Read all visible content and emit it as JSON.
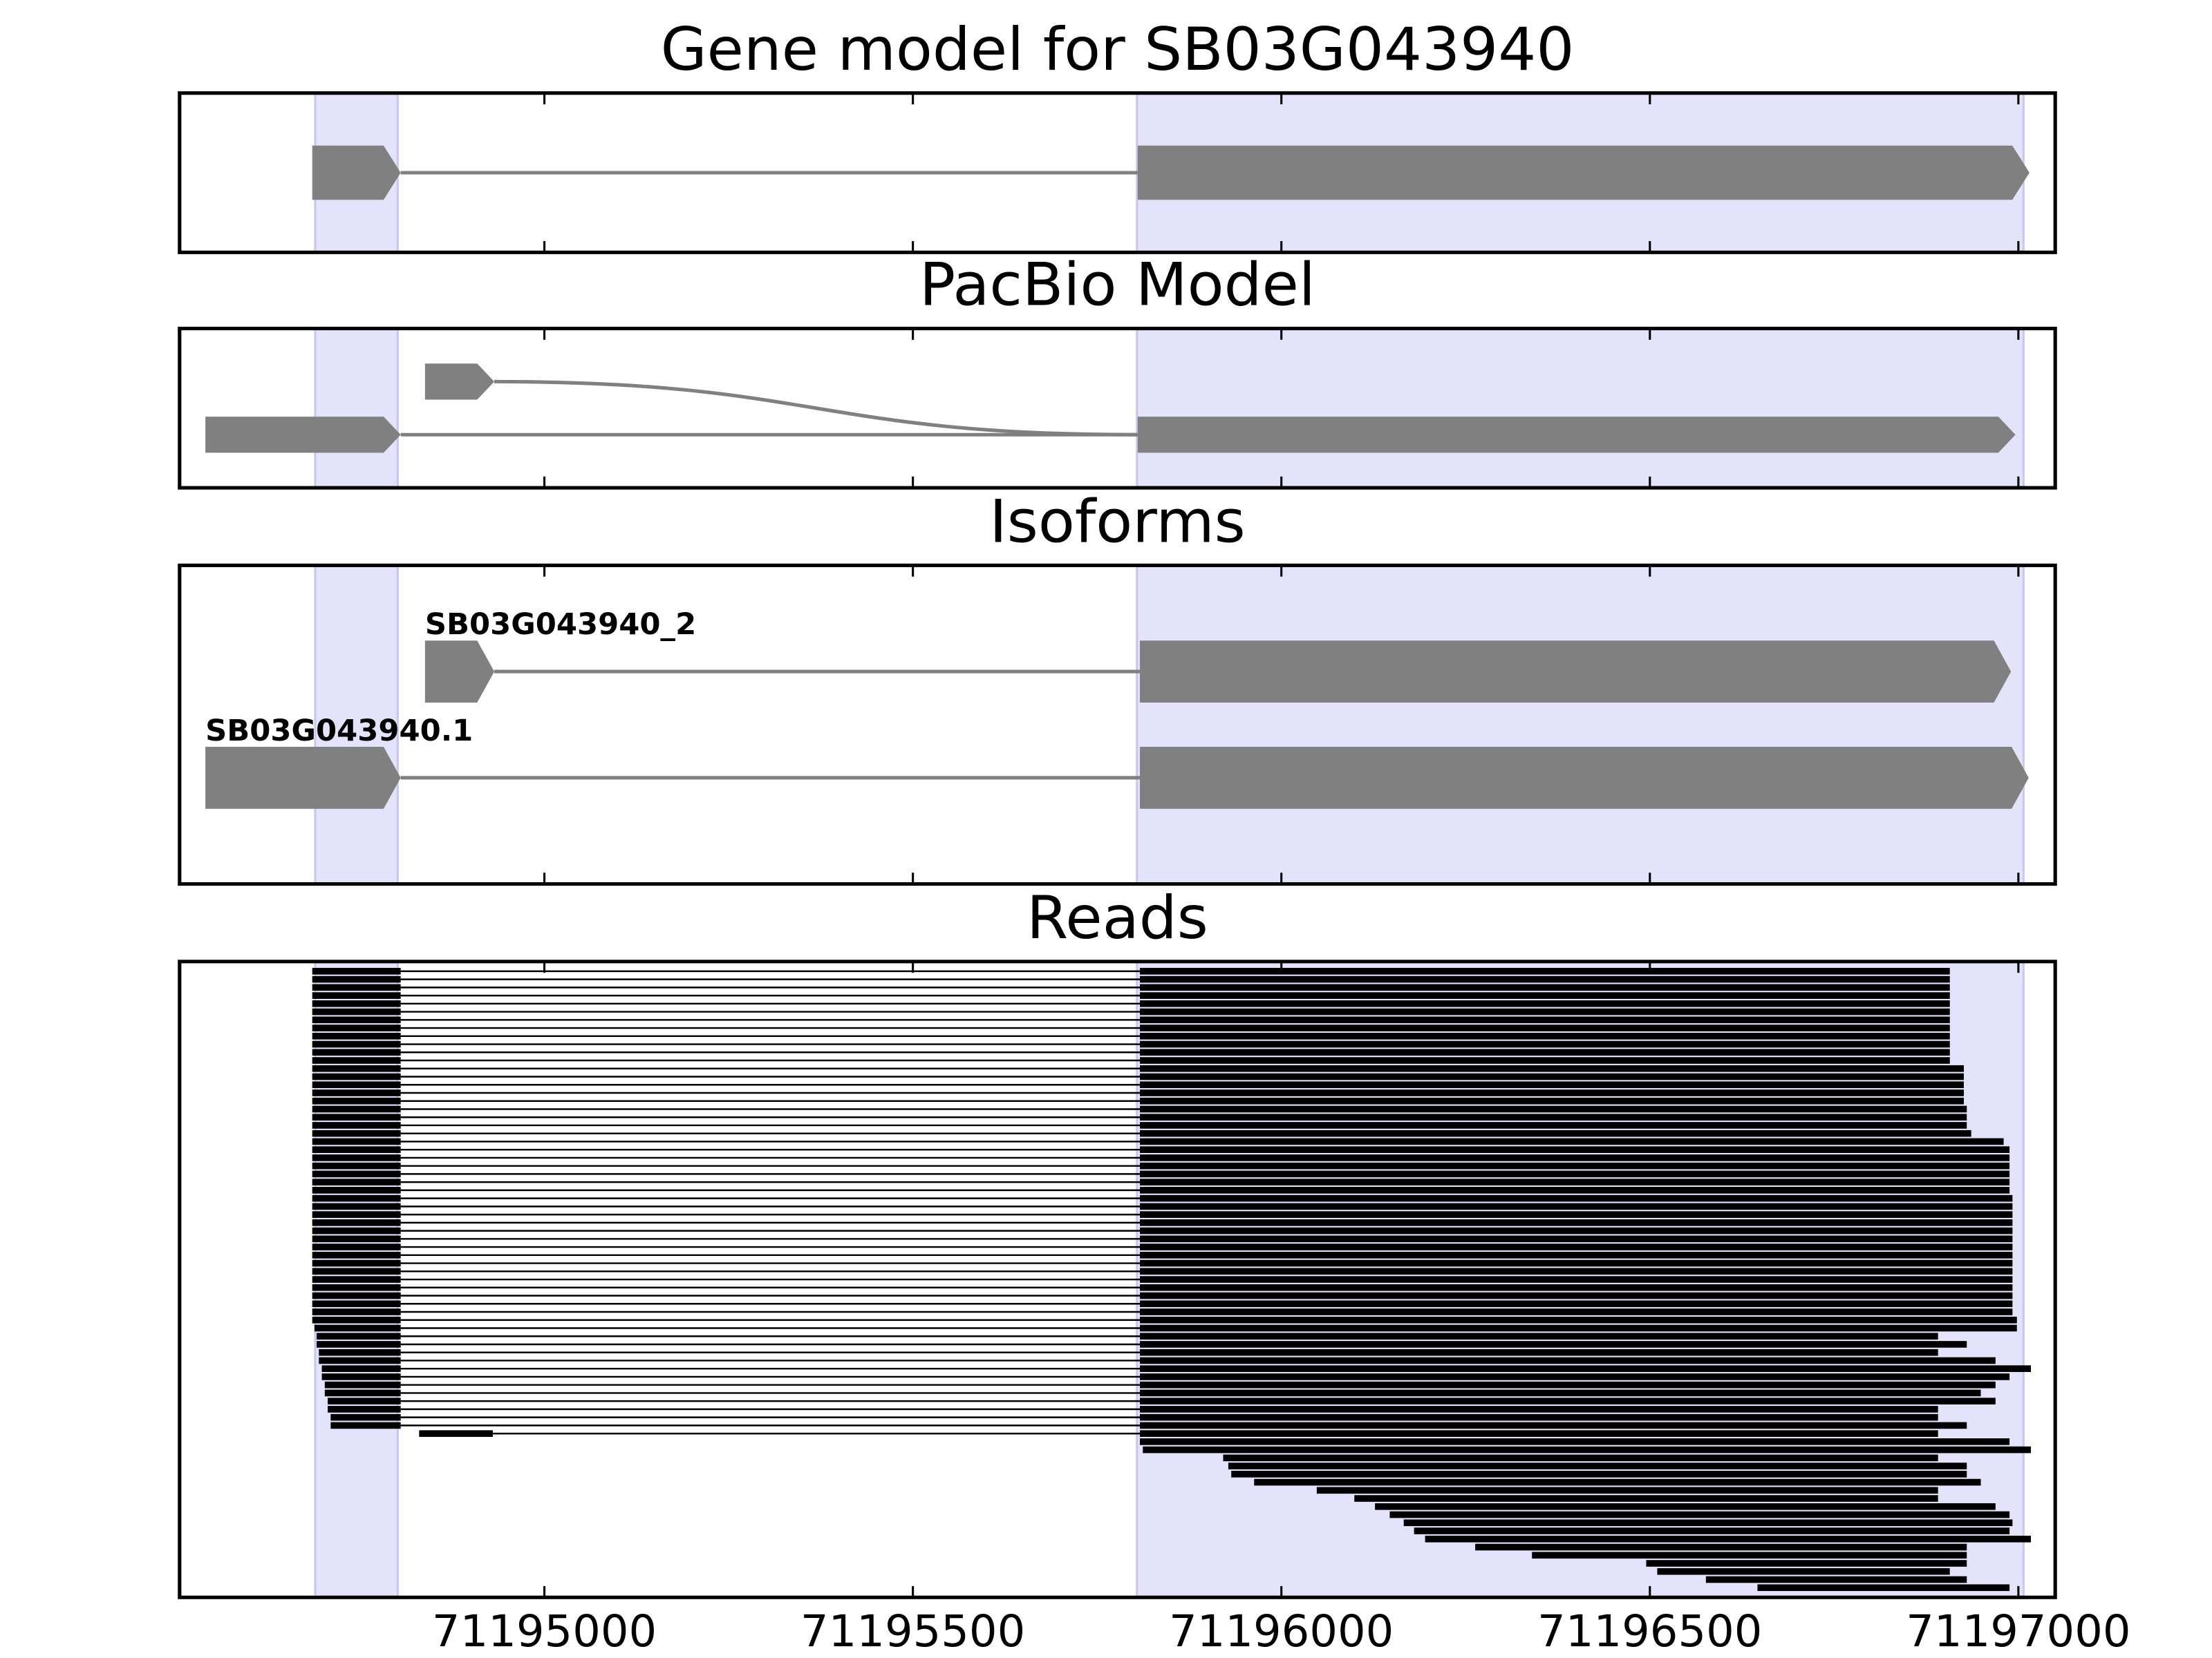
{
  "chart_data": [
    {
      "type": "gene",
      "title": "Gene model for SB03G043940",
      "xlim": [
        71194505,
        71197050
      ],
      "xticks": [
        71195000,
        71195500,
        71196000,
        71196500,
        71197000
      ],
      "highlights": [
        [
          71194689,
          71194801
        ],
        [
          71195804,
          71197007
        ]
      ],
      "highlight_color": "#e3e3fc",
      "color": "#808080",
      "models": [
        {
          "exons": [
            [
              71194685,
              71194805
            ],
            [
              71195805,
              71197015
            ]
          ]
        }
      ]
    },
    {
      "type": "gene",
      "title": "PacBio Model",
      "xlim": [
        71194505,
        71197050
      ],
      "xticks": [
        71195000,
        71195500,
        71196000,
        71196500,
        71197000
      ],
      "highlights": [
        [
          71194689,
          71194801
        ],
        [
          71195804,
          71197007
        ]
      ],
      "highlight_color": "#e3e3fc",
      "color": "#808080",
      "models": [
        {
          "exons": [
            [
              71194838,
              71194932
            ],
            [
              71195805,
              71196996
            ]
          ]
        },
        {
          "exons": [
            [
              71194540,
              71194805
            ],
            [
              71195805,
              71196996
            ]
          ]
        }
      ]
    },
    {
      "type": "gene",
      "title": "Isoforms",
      "xlim": [
        71194505,
        71197050
      ],
      "xticks": [
        71195000,
        71195500,
        71196000,
        71196500,
        71197000
      ],
      "highlights": [
        [
          71194689,
          71194801
        ],
        [
          71195804,
          71197007
        ]
      ],
      "highlight_color": "#e3e3fc",
      "color": "#808080",
      "models": [
        {
          "name": "SB03G043940_2",
          "exons": [
            [
              71194838,
              71194932
            ],
            [
              71195808,
              71196990
            ]
          ]
        },
        {
          "name": "SB03G043940.1",
          "exons": [
            [
              71194540,
              71194805
            ],
            [
              71195808,
              71197014
            ]
          ]
        }
      ]
    },
    {
      "type": "reads",
      "title": "Reads",
      "xlim": [
        71194505,
        71197050
      ],
      "xticks": [
        71195000,
        71195500,
        71196000,
        71196500,
        71197000
      ],
      "highlights": [
        [
          71194689,
          71194801
        ],
        [
          71195804,
          71197007
        ]
      ],
      "highlight_color": "#e3e3fc",
      "color": "#000000",
      "reads": [
        [
          71194685,
          71194805,
          71195808,
          71196907
        ],
        [
          71194685,
          71194805,
          71195808,
          71196907
        ],
        [
          71194685,
          71194805,
          71195808,
          71196907
        ],
        [
          71194685,
          71194805,
          71195808,
          71196907
        ],
        [
          71194685,
          71194805,
          71195808,
          71196907
        ],
        [
          71194685,
          71194805,
          71195808,
          71196907
        ],
        [
          71194685,
          71194805,
          71195808,
          71196907
        ],
        [
          71194685,
          71194805,
          71195808,
          71196907
        ],
        [
          71194685,
          71194805,
          71195808,
          71196907
        ],
        [
          71194685,
          71194805,
          71195808,
          71196907
        ],
        [
          71194685,
          71194805,
          71195808,
          71196907
        ],
        [
          71194685,
          71194805,
          71195808,
          71196907
        ],
        [
          71194685,
          71194805,
          71195808,
          71196926
        ],
        [
          71194685,
          71194805,
          71195808,
          71196926
        ],
        [
          71194685,
          71194805,
          71195808,
          71196926
        ],
        [
          71194685,
          71194805,
          71195808,
          71196926
        ],
        [
          71194685,
          71194805,
          71195808,
          71196926
        ],
        [
          71194685,
          71194805,
          71195808,
          71196930
        ],
        [
          71194685,
          71194805,
          71195808,
          71196930
        ],
        [
          71194685,
          71194805,
          71195808,
          71196930
        ],
        [
          71194685,
          71194805,
          71195808,
          71196936
        ],
        [
          71194685,
          71194805,
          71195808,
          71196980
        ],
        [
          71194685,
          71194805,
          71195808,
          71196988
        ],
        [
          71194685,
          71194805,
          71195808,
          71196988
        ],
        [
          71194685,
          71194805,
          71195808,
          71196988
        ],
        [
          71194685,
          71194805,
          71195808,
          71196988
        ],
        [
          71194685,
          71194805,
          71195808,
          71196988
        ],
        [
          71194685,
          71194805,
          71195808,
          71196988
        ],
        [
          71194685,
          71194805,
          71195808,
          71196992
        ],
        [
          71194685,
          71194805,
          71195808,
          71196992
        ],
        [
          71194685,
          71194805,
          71195808,
          71196992
        ],
        [
          71194685,
          71194805,
          71195808,
          71196992
        ],
        [
          71194685,
          71194805,
          71195808,
          71196992
        ],
        [
          71194685,
          71194805,
          71195808,
          71196992
        ],
        [
          71194685,
          71194805,
          71195808,
          71196992
        ],
        [
          71194685,
          71194805,
          71195808,
          71196992
        ],
        [
          71194685,
          71194805,
          71195808,
          71196992
        ],
        [
          71194685,
          71194805,
          71195808,
          71196992
        ],
        [
          71194685,
          71194805,
          71195808,
          71196992
        ],
        [
          71194685,
          71194805,
          71195808,
          71196992
        ],
        [
          71194685,
          71194805,
          71195808,
          71196992
        ],
        [
          71194685,
          71194805,
          71195808,
          71196992
        ],
        [
          71194685,
          71194805,
          71195808,
          71196992
        ],
        [
          71194685,
          71194805,
          71195808,
          71196998
        ],
        [
          71194688,
          71194805,
          71195808,
          71196998
        ],
        [
          71194691,
          71194805,
          71195808,
          71196891
        ],
        [
          71194691,
          71194805,
          71195808,
          71196930
        ],
        [
          71194694,
          71194805,
          71195808,
          71196891
        ],
        [
          71194694,
          71194805,
          71195808,
          71196969
        ],
        [
          71194698,
          71194805,
          71195808,
          71197017
        ],
        [
          71194698,
          71194805,
          71195808,
          71196988
        ],
        [
          71194702,
          71194805,
          71195808,
          71196969
        ],
        [
          71194702,
          71194805,
          71195808,
          71196949
        ],
        [
          71194706,
          71194805,
          71195808,
          71196969
        ],
        [
          71194706,
          71194805,
          71195808,
          71196891
        ],
        [
          71194710,
          71194805,
          71195808,
          71196891
        ],
        [
          71194710,
          71194805,
          71195808,
          71196930
        ],
        [
          71194830,
          71194930,
          71195808,
          71196891
        ],
        [
          71195808,
          71196988
        ],
        [
          71195812,
          71197017
        ],
        [
          71195921,
          71196891
        ],
        [
          71195928,
          71196930
        ],
        [
          71195932,
          71196930
        ],
        [
          71195963,
          71196949
        ],
        [
          71196048,
          71196891
        ],
        [
          71196099,
          71196891
        ],
        [
          71196127,
          71196969
        ],
        [
          71196147,
          71196988
        ],
        [
          71196166,
          71196992
        ],
        [
          71196180,
          71196988
        ],
        [
          71196195,
          71197017
        ],
        [
          71196263,
          71196930
        ],
        [
          71196340,
          71196930
        ],
        [
          71196495,
          71196930
        ],
        [
          71196510,
          71196907
        ],
        [
          71196576,
          71196930
        ],
        [
          71196646,
          71196988
        ]
      ]
    }
  ]
}
